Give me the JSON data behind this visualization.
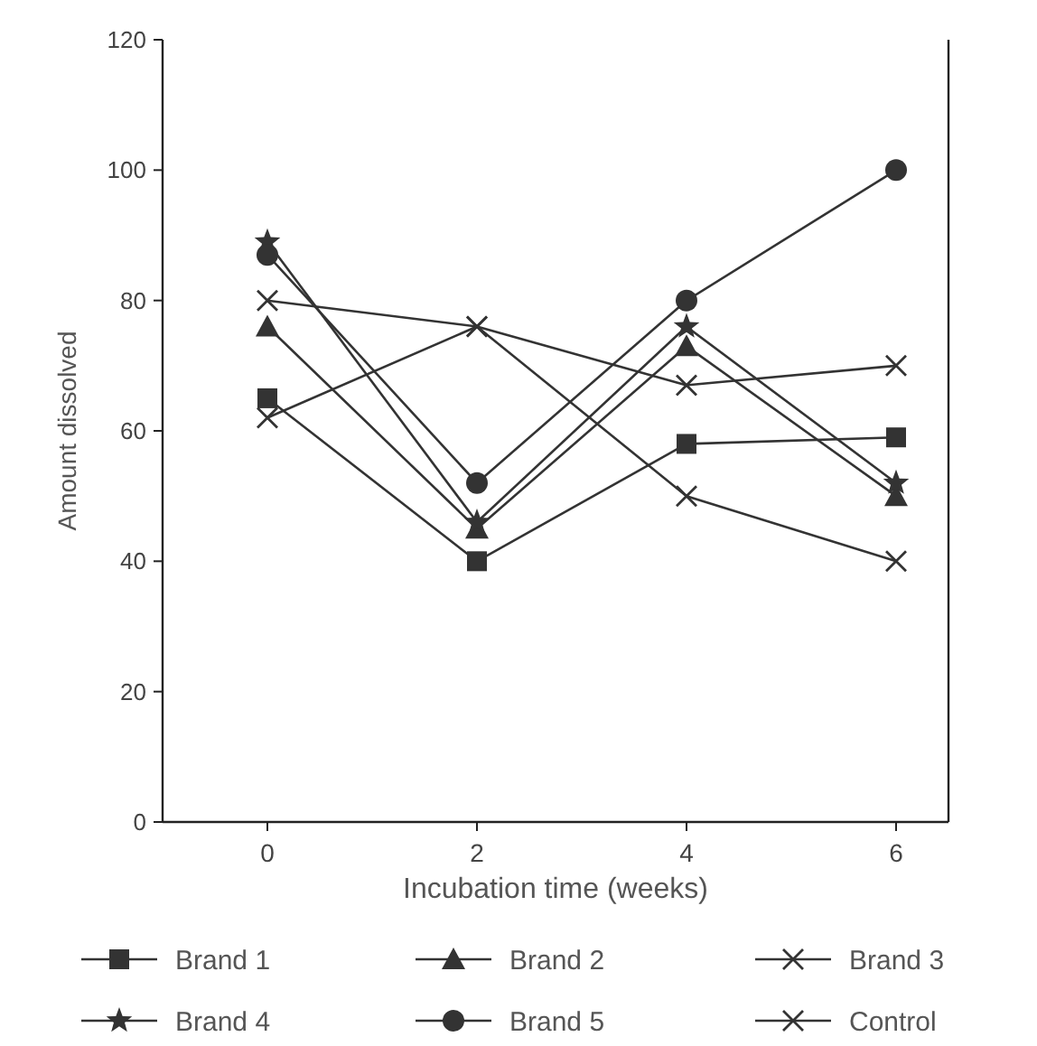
{
  "chart_data": {
    "type": "line",
    "xlabel": "Incubation time (weeks)",
    "ylabel": "Amount dissolved",
    "x": [
      0,
      2,
      4,
      6
    ],
    "xlim": [
      -1,
      6.5
    ],
    "xticks": [
      0,
      2,
      4,
      6
    ],
    "ylim": [
      0,
      120
    ],
    "yticks": [
      0,
      20,
      40,
      60,
      80,
      100,
      120
    ],
    "grid": false,
    "legend": "bottom",
    "line_style": "solid",
    "series": [
      {
        "name": "Brand 1",
        "color": "#333333",
        "marker": "square",
        "values": [
          65,
          40,
          58,
          59
        ]
      },
      {
        "name": "Brand 2",
        "color": "#333333",
        "marker": "triangle",
        "values": [
          76,
          45,
          73,
          50
        ]
      },
      {
        "name": "Brand 3",
        "color": "#333333",
        "marker": "cross",
        "values": [
          80,
          76,
          50,
          40
        ]
      },
      {
        "name": "Brand 4",
        "color": "#333333",
        "marker": "star",
        "values": [
          89,
          46,
          76,
          52
        ]
      },
      {
        "name": "Brand 5",
        "color": "#333333",
        "marker": "circle",
        "values": [
          87,
          52,
          80,
          100
        ]
      },
      {
        "name": "Control",
        "color": "#333333",
        "marker": "cross",
        "values": [
          62,
          76,
          67,
          70
        ]
      }
    ]
  }
}
